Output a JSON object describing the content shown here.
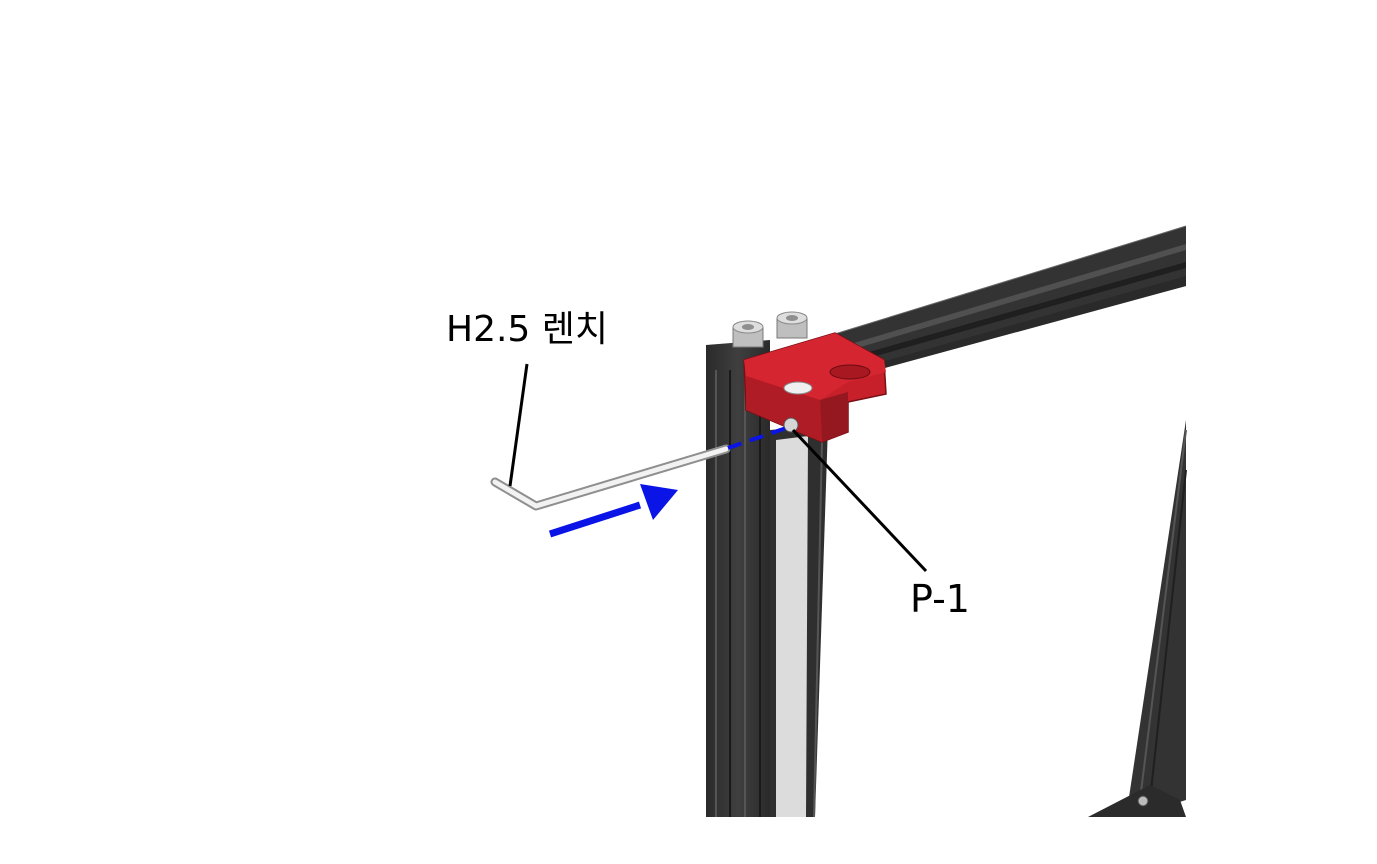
{
  "callouts": {
    "wrench_label": "H2.5 렌치",
    "part_label": "P-1"
  },
  "colors": {
    "background": "#ffffff",
    "extrusion": "#3a3a3a",
    "extrusion_dark": "#262626",
    "bracket": "#c8202a",
    "bracket_shadow": "#951820",
    "arrow": "#0a14e6",
    "leader_line": "#000000",
    "screw": "#c9c9c9"
  },
  "icons": {
    "motion_arrow": "blue-arrow",
    "insertion_path": "dashed-line"
  }
}
